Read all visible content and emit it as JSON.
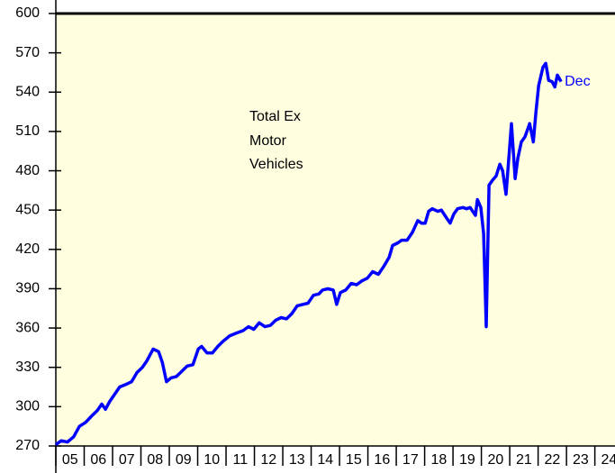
{
  "chart_data": {
    "type": "line",
    "annotation_lines": [
      "Total Ex",
      "Motor",
      "Vehicles"
    ],
    "end_label": "Dec",
    "background": "#ffffe0",
    "series": [
      {
        "name": "Total Ex Motor Vehicles",
        "color": "#0000ff",
        "x": [
          2005.0,
          2005.19,
          2005.41,
          2005.63,
          2005.83,
          2006.05,
          2006.27,
          2006.46,
          2006.62,
          2006.75,
          2006.9,
          2007.06,
          2007.25,
          2007.48,
          2007.67,
          2007.86,
          2008.05,
          2008.21,
          2008.43,
          2008.62,
          2008.75,
          2008.9,
          2009.06,
          2009.25,
          2009.44,
          2009.63,
          2009.83,
          2010.02,
          2010.14,
          2010.33,
          2010.52,
          2010.71,
          2010.9,
          2011.13,
          2011.35,
          2011.6,
          2011.79,
          2011.98,
          2012.17,
          2012.37,
          2012.56,
          2012.75,
          2012.94,
          2013.13,
          2013.32,
          2013.51,
          2013.7,
          2013.89,
          2014.08,
          2014.27,
          2014.4,
          2014.59,
          2014.78,
          2014.9,
          2015.03,
          2015.22,
          2015.41,
          2015.6,
          2015.79,
          2015.98,
          2016.17,
          2016.37,
          2016.56,
          2016.75,
          2016.87,
          2017.06,
          2017.19,
          2017.38,
          2017.57,
          2017.76,
          2017.89,
          2018.02,
          2018.14,
          2018.27,
          2018.46,
          2018.59,
          2018.71,
          2018.9,
          2019.03,
          2019.16,
          2019.35,
          2019.48,
          2019.6,
          2019.79,
          2019.86,
          2019.98,
          2020.08,
          2020.17,
          2020.27,
          2020.4,
          2020.52,
          2020.65,
          2020.75,
          2020.87,
          2021.06,
          2021.19,
          2021.29,
          2021.41,
          2021.54,
          2021.7,
          2021.83,
          2021.92,
          2022.02,
          2022.17,
          2022.27,
          2022.37,
          2022.49,
          2022.59,
          2022.68,
          2022.81
        ],
        "values": [
          271,
          274,
          273,
          277,
          285,
          288,
          293,
          297,
          302,
          298,
          304,
          309,
          315,
          317,
          319,
          326,
          330,
          335,
          344,
          342,
          334,
          319,
          322,
          323,
          327,
          331,
          332,
          344,
          346,
          341,
          341,
          346,
          350,
          354,
          356,
          358,
          361,
          359,
          364,
          361,
          362,
          366,
          368,
          367,
          371,
          377,
          378,
          379,
          385,
          386,
          389,
          390,
          389,
          378,
          387,
          389,
          394,
          393,
          396,
          398,
          403,
          401,
          407,
          414,
          423,
          425,
          427,
          427,
          433,
          442,
          440,
          440,
          449,
          451,
          449,
          450,
          446,
          440,
          447,
          451,
          452,
          451,
          452,
          446,
          458,
          452,
          432,
          361,
          469,
          473,
          476,
          485,
          480,
          462,
          516,
          474,
          490,
          502,
          506,
          516,
          502,
          524,
          545,
          559,
          562,
          549,
          548,
          544,
          553,
          548
        ]
      }
    ],
    "xlim": [
      2005,
      2024.71
    ],
    "xticks": [
      {
        "value": 2005.5,
        "label": "05"
      },
      {
        "value": 2006.5,
        "label": "06"
      },
      {
        "value": 2007.5,
        "label": "07"
      },
      {
        "value": 2008.5,
        "label": "08"
      },
      {
        "value": 2009.5,
        "label": "09"
      },
      {
        "value": 2010.5,
        "label": "10"
      },
      {
        "value": 2011.5,
        "label": "11"
      },
      {
        "value": 2012.5,
        "label": "12"
      },
      {
        "value": 2013.5,
        "label": "13"
      },
      {
        "value": 2014.5,
        "label": "14"
      },
      {
        "value": 2015.5,
        "label": "15"
      },
      {
        "value": 2016.5,
        "label": "16"
      },
      {
        "value": 2017.5,
        "label": "17"
      },
      {
        "value": 2018.5,
        "label": "18"
      },
      {
        "value": 2019.5,
        "label": "19"
      },
      {
        "value": 2020.5,
        "label": "20"
      },
      {
        "value": 2021.5,
        "label": "21"
      },
      {
        "value": 2022.5,
        "label": "22"
      },
      {
        "value": 2023.5,
        "label": "23"
      },
      {
        "value": 2024.5,
        "label": "24"
      }
    ],
    "ylim": [
      270,
      600
    ],
    "yticks": [
      270,
      300,
      330,
      360,
      390,
      420,
      450,
      480,
      510,
      540,
      570,
      600
    ]
  }
}
